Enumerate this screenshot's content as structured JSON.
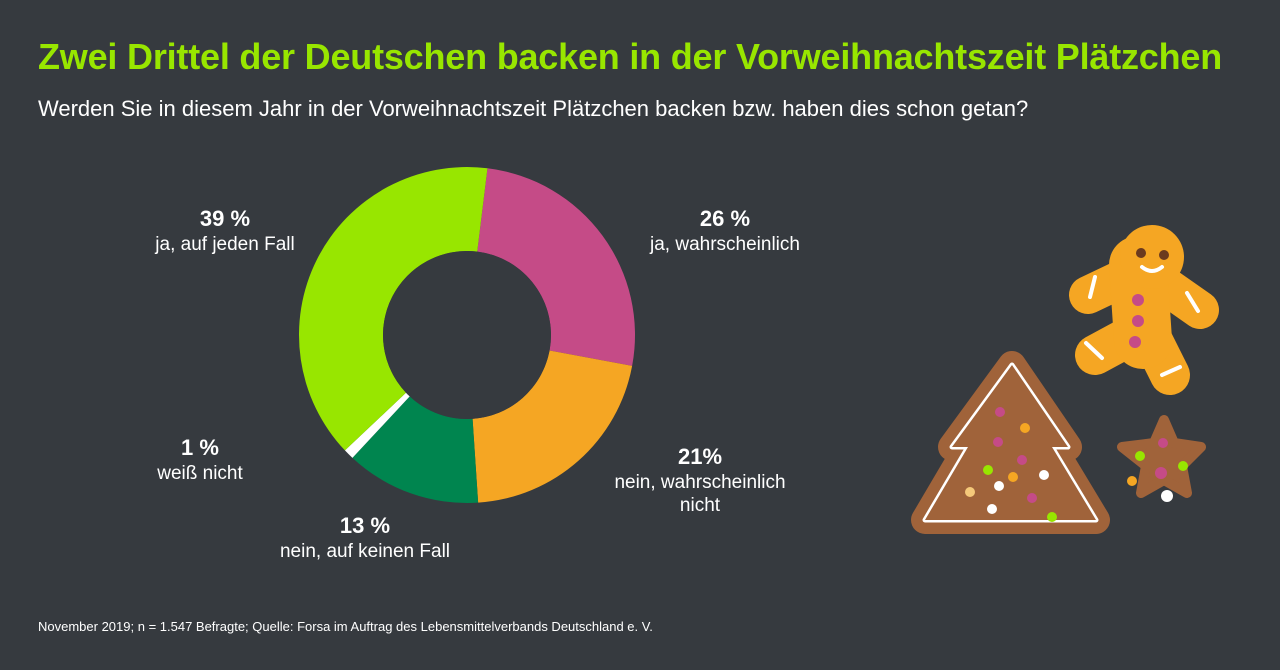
{
  "header": {
    "title": "Zwei Drittel der Deutschen backen in der Vorweihnachtszeit Plätzchen",
    "subtitle": "Werden Sie in diesem Jahr in der Vorweihnachtszeit Plätzchen backen bzw. haben dies schon getan?"
  },
  "footer": {
    "source": "November 2019; n = 1.547 Befragte;  Quelle: Forsa im Auftrag des Lebensmittelverbands Deutschland e. V."
  },
  "chart_data": {
    "type": "pie",
    "variant": "donut",
    "title": "Zwei Drittel der Deutschen backen in der Vorweihnachtszeit Plätzchen",
    "slices": [
      {
        "label": "ja, auf jeden Fall",
        "value": 39,
        "value_text": "39 %",
        "color": "#98e600"
      },
      {
        "label": "ja, wahrscheinlich",
        "value": 26,
        "value_text": "26 %",
        "color": "#c54b87"
      },
      {
        "label": "nein, wahrscheinlich nicht",
        "value": 21,
        "value_text": "21%",
        "color": "#f5a623"
      },
      {
        "label": "nein, auf keinen Fall",
        "value": 13,
        "value_text": "13 %",
        "color": "#00854f"
      },
      {
        "label": "weiß nicht",
        "value": 1,
        "value_text": "1 %",
        "color": "#ffffff"
      }
    ]
  },
  "decorations": {
    "icons": [
      "gingerbread-man-icon",
      "gingerbread-tree-icon",
      "star-cookie-icon"
    ]
  }
}
